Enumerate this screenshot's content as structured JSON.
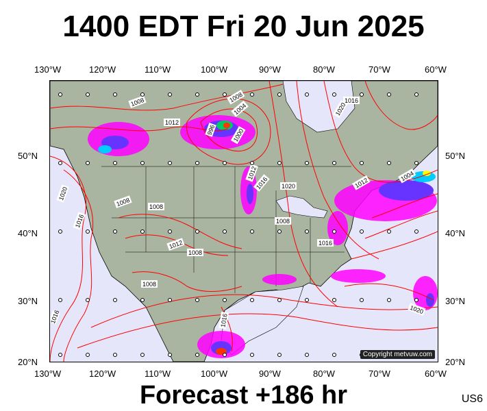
{
  "title": "1400 EDT Fri 20 Jun 2025",
  "subtitle": "Forecast +186 hr",
  "region_code": "US6",
  "copyright": "Copyright metvuw.com",
  "longitude_labels": [
    "130°W",
    "120°W",
    "110°W",
    "100°W",
    "90°W",
    "80°W",
    "70°W",
    "60°W"
  ],
  "latitude_labels": [
    "50°N",
    "40°N",
    "30°N",
    "20°N"
  ],
  "isobar_labels": [
    "1008",
    "1012",
    "1004",
    "1000",
    "996",
    "1008",
    "1012",
    "1016",
    "1020",
    "1016",
    "1008",
    "1012",
    "1016",
    "1020",
    "1012",
    "1004",
    "1008",
    "1020",
    "1016",
    "1008",
    "1012",
    "1008",
    "1016",
    "1020",
    "1016",
    "1008"
  ],
  "colors": {
    "ocean": "#e6e6fa",
    "land": "#a9b5a0",
    "isobar": "#ff0000",
    "precip_light": "#ff00ff",
    "precip_med": "#6633ff",
    "precip_heavy": "#00ccff"
  }
}
